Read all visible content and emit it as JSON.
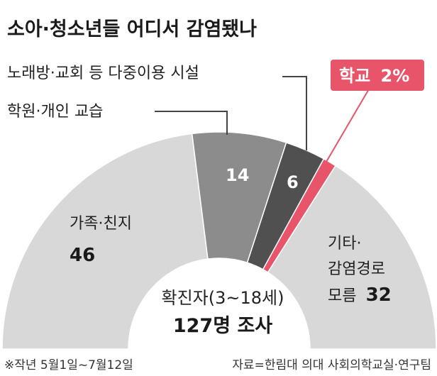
{
  "chart_data": {
    "type": "pie",
    "variant": "half-donut",
    "title": "소아·청소년들 어디서 감염됐나",
    "center_line1": "확진자(3~18세)",
    "center_line2": "127명 조사",
    "slices": [
      {
        "label": "가족·친지",
        "value": 46,
        "color": "#d8d8d8"
      },
      {
        "label": "학원·개인 교습",
        "value": 14,
        "color": "#8c8c8c"
      },
      {
        "label": "노래방·교회 등 다중이용 시설",
        "value": 6,
        "color": "#505050"
      },
      {
        "label": "학교",
        "value": 2,
        "value_text": "2%",
        "color": "#e8556b"
      },
      {
        "label_lines": [
          "기타·",
          "감염경로"
        ],
        "label_tail": "모름",
        "value": 32,
        "color": "#d8d8d8"
      }
    ]
  },
  "footnote_left": "※작년 5월1일~7월12일",
  "footnote_right": "자료=한림대 의대 사회의학교실·연구팀"
}
